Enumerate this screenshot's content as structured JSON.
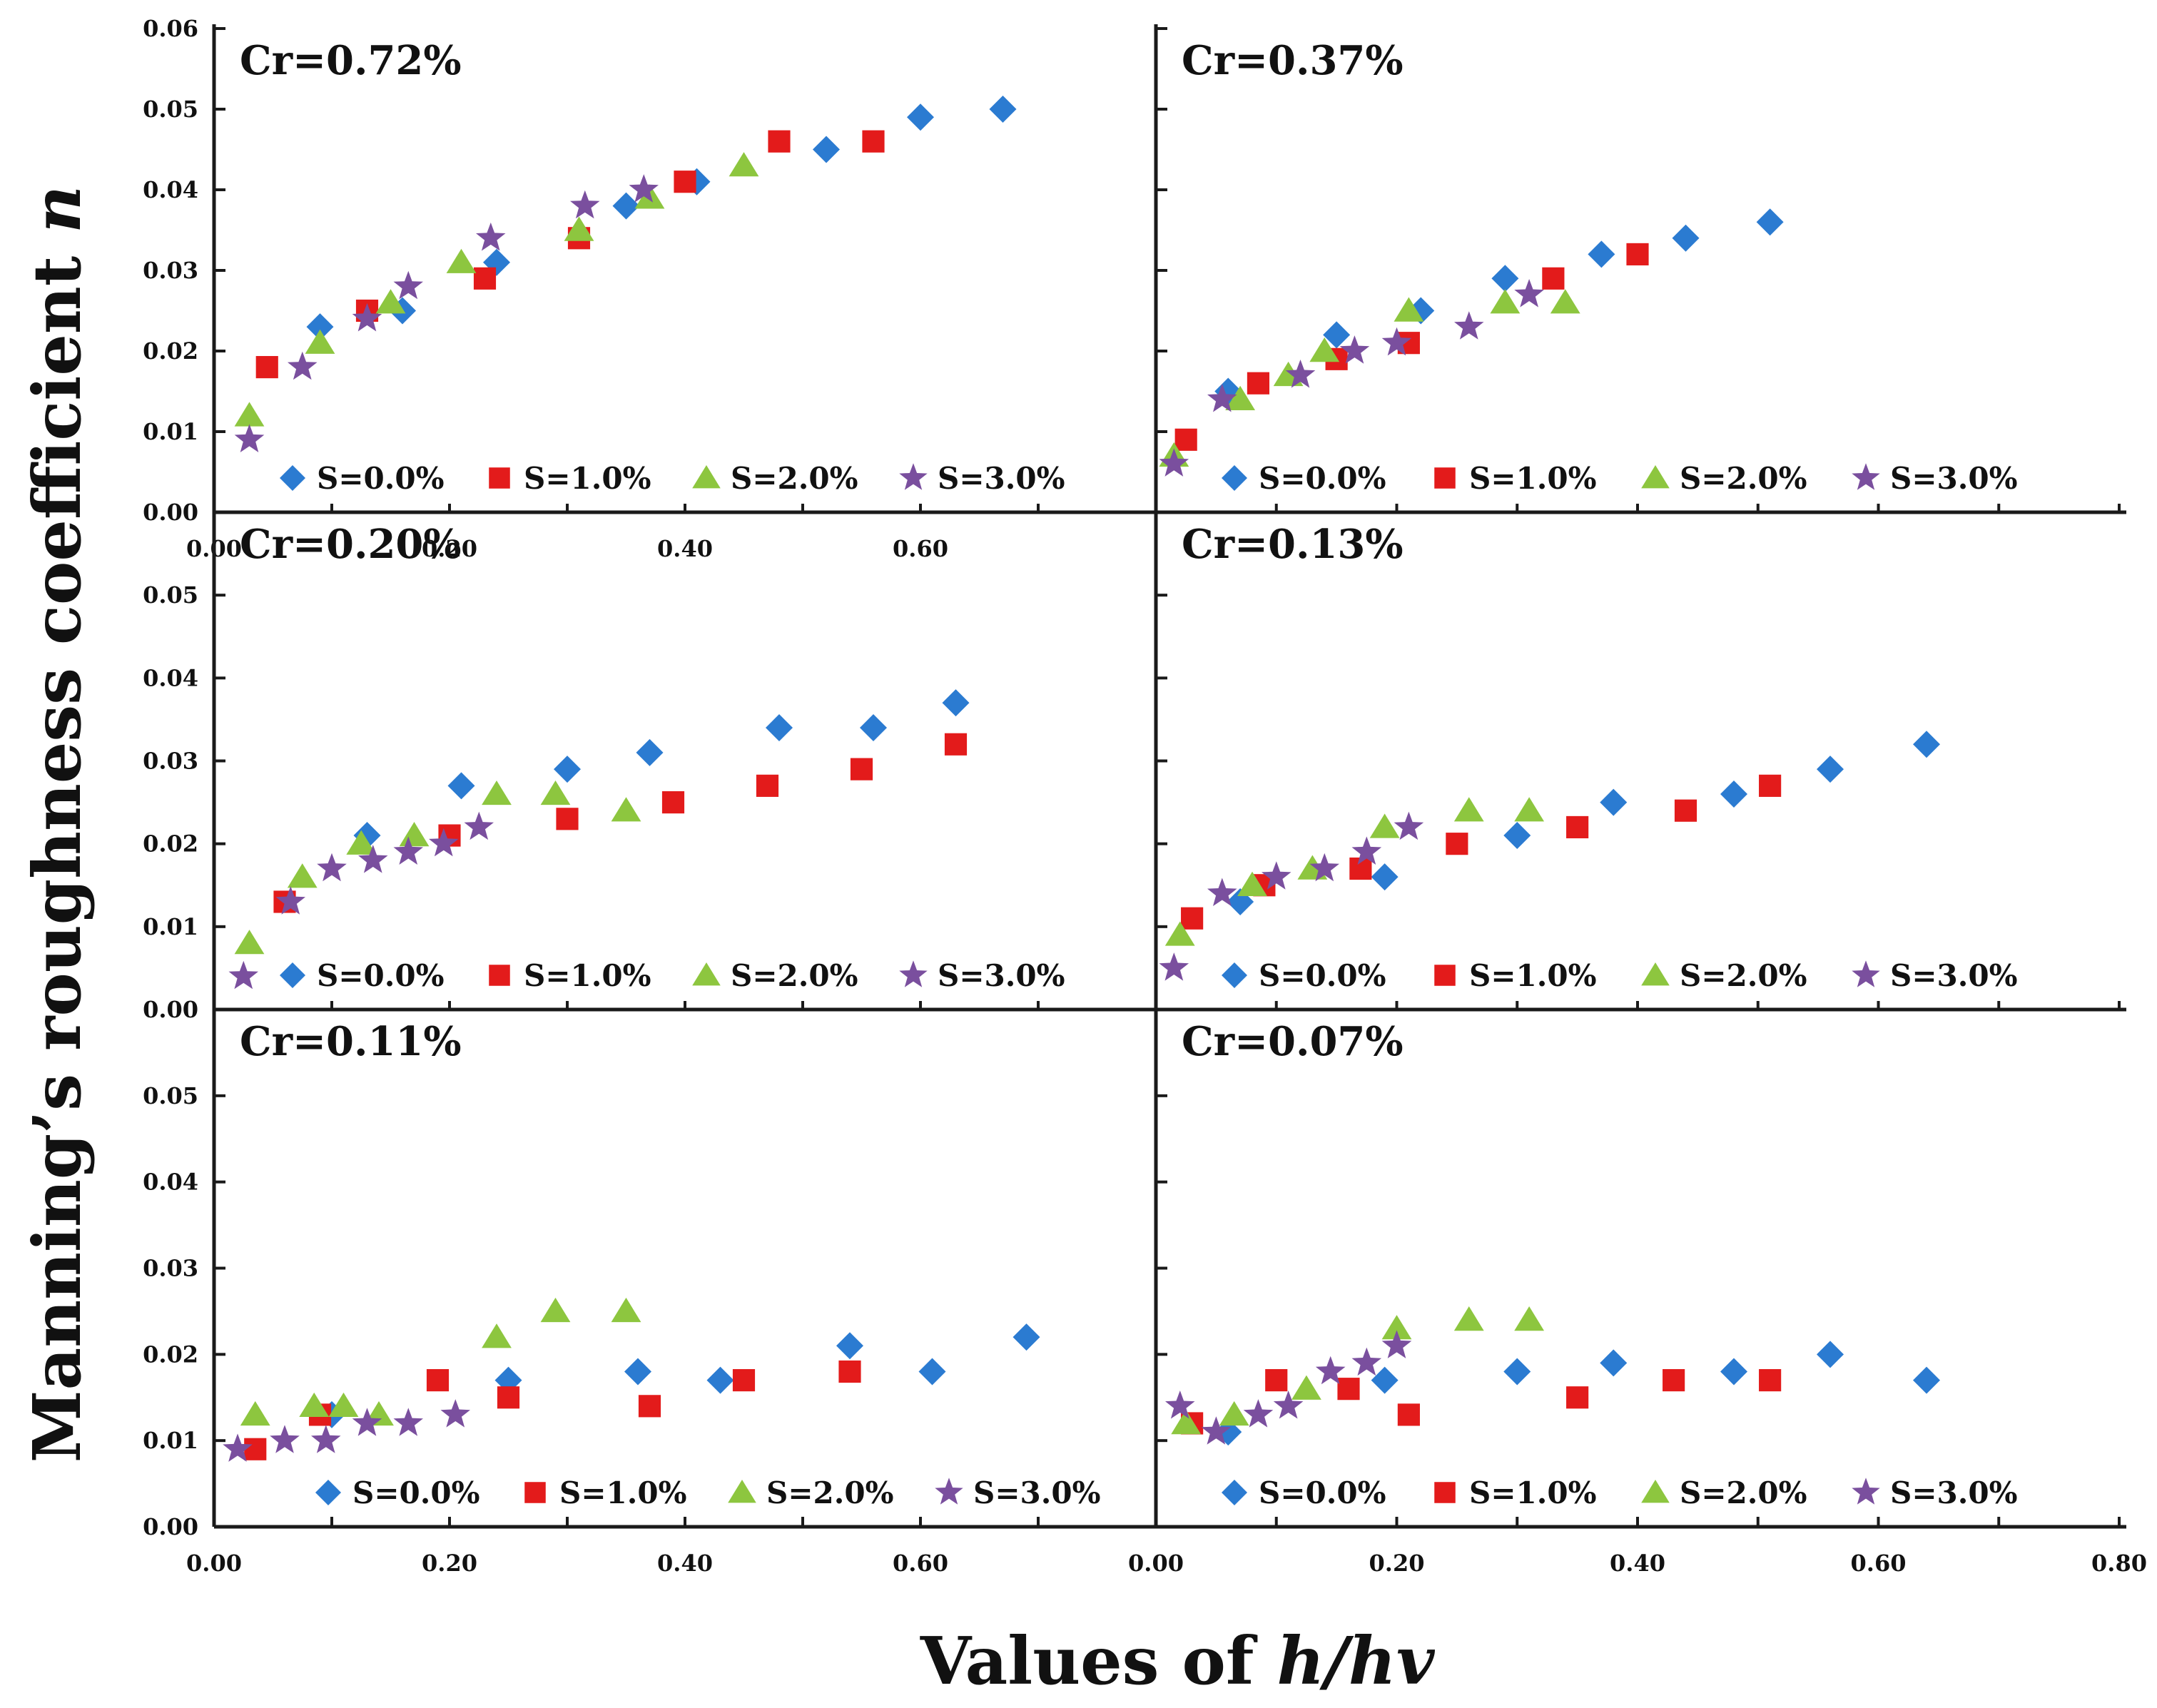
{
  "figure": {
    "ylabel": "Manning’s roughness coefficient",
    "ylabel_var": "n",
    "xlabel": "Values of",
    "xlabel_var": "h/hv"
  },
  "series_styles": [
    {
      "name": "S=0.0%",
      "marker": "diamond",
      "color": "#2b7bd1"
    },
    {
      "name": "S=1.0%",
      "marker": "square",
      "color": "#e31b1b"
    },
    {
      "name": "S=2.0%",
      "marker": "triangle",
      "color": "#8dc63f"
    },
    {
      "name": "S=3.0%",
      "marker": "star",
      "color": "#7a4f9e"
    }
  ],
  "chart_data": [
    {
      "type": "scatter",
      "panel": "Cr=0.72%",
      "title": "Cr=0.72%",
      "xlim": [
        0,
        0.8
      ],
      "ylim": [
        0,
        0.06
      ],
      "yticks": [
        "0.00",
        "0.01",
        "0.02",
        "0.03",
        "0.04",
        "0.05",
        "0.06"
      ],
      "xticks": [
        "0.00",
        "0.20",
        "0.40",
        "0.60"
      ],
      "series": [
        {
          "name": "S=0.0%",
          "x": [
            0.09,
            0.16,
            0.24,
            0.35,
            0.41,
            0.52,
            0.6,
            0.67
          ],
          "y": [
            0.023,
            0.025,
            0.031,
            0.038,
            0.041,
            0.045,
            0.049,
            0.05
          ]
        },
        {
          "name": "S=1.0%",
          "x": [
            0.045,
            0.13,
            0.23,
            0.31,
            0.4,
            0.48,
            0.56
          ],
          "y": [
            0.018,
            0.025,
            0.029,
            0.034,
            0.041,
            0.046,
            0.046
          ]
        },
        {
          "name": "S=2.0%",
          "x": [
            0.03,
            0.09,
            0.15,
            0.21,
            0.31,
            0.37,
            0.45
          ],
          "y": [
            0.012,
            0.021,
            0.026,
            0.031,
            0.035,
            0.039,
            0.043
          ]
        },
        {
          "name": "S=3.0%",
          "x": [
            0.03,
            0.075,
            0.13,
            0.165,
            0.235,
            0.315,
            0.365
          ],
          "y": [
            0.009,
            0.018,
            0.024,
            0.028,
            0.034,
            0.038,
            0.04
          ]
        }
      ]
    },
    {
      "type": "scatter",
      "panel": "Cr=0.37%",
      "title": "Cr=0.37%",
      "xlim": [
        0,
        0.8
      ],
      "ylim": [
        0,
        0.06
      ],
      "xticks": [],
      "series": [
        {
          "name": "S=0.0%",
          "x": [
            0.06,
            0.15,
            0.22,
            0.29,
            0.37,
            0.44,
            0.51
          ],
          "y": [
            0.015,
            0.022,
            0.025,
            0.029,
            0.032,
            0.034,
            0.036
          ]
        },
        {
          "name": "S=1.0%",
          "x": [
            0.025,
            0.085,
            0.15,
            0.21,
            0.33,
            0.4
          ],
          "y": [
            0.009,
            0.016,
            0.019,
            0.021,
            0.029,
            0.032
          ]
        },
        {
          "name": "S=2.0%",
          "x": [
            0.015,
            0.07,
            0.11,
            0.14,
            0.21,
            0.29,
            0.34
          ],
          "y": [
            0.007,
            0.014,
            0.017,
            0.02,
            0.025,
            0.026,
            0.026
          ]
        },
        {
          "name": "S=3.0%",
          "x": [
            0.015,
            0.055,
            0.12,
            0.165,
            0.2,
            0.26,
            0.31
          ],
          "y": [
            0.006,
            0.014,
            0.017,
            0.02,
            0.021,
            0.023,
            0.027
          ]
        }
      ]
    },
    {
      "type": "scatter",
      "panel": "Cr=0.20%",
      "title": "Cr=0.20%",
      "xlim": [
        0,
        0.8
      ],
      "ylim": [
        0,
        0.06
      ],
      "yticks": [
        "0.00",
        "0.01",
        "0.02",
        "0.03",
        "0.04",
        "0.05"
      ],
      "xticks": [],
      "series": [
        {
          "name": "S=0.0%",
          "x": [
            0.13,
            0.21,
            0.3,
            0.37,
            0.48,
            0.56,
            0.63
          ],
          "y": [
            0.021,
            0.027,
            0.029,
            0.031,
            0.034,
            0.034,
            0.037
          ]
        },
        {
          "name": "S=1.0%",
          "x": [
            0.06,
            0.2,
            0.3,
            0.39,
            0.47,
            0.55,
            0.63
          ],
          "y": [
            0.013,
            0.021,
            0.023,
            0.025,
            0.027,
            0.029,
            0.032
          ]
        },
        {
          "name": "S=2.0%",
          "x": [
            0.03,
            0.075,
            0.125,
            0.17,
            0.24,
            0.29,
            0.35
          ],
          "y": [
            0.008,
            0.016,
            0.02,
            0.021,
            0.026,
            0.026,
            0.024
          ]
        },
        {
          "name": "S=3.0%",
          "x": [
            0.025,
            0.065,
            0.1,
            0.135,
            0.165,
            0.195,
            0.225
          ],
          "y": [
            0.004,
            0.013,
            0.017,
            0.018,
            0.019,
            0.02,
            0.022
          ]
        }
      ]
    },
    {
      "type": "scatter",
      "panel": "Cr=0.13%",
      "title": "Cr=0.13%",
      "xlim": [
        0,
        0.8
      ],
      "ylim": [
        0,
        0.06
      ],
      "xticks": [],
      "series": [
        {
          "name": "S=0.0%",
          "x": [
            0.07,
            0.19,
            0.3,
            0.38,
            0.48,
            0.56,
            0.64
          ],
          "y": [
            0.013,
            0.016,
            0.021,
            0.025,
            0.026,
            0.029,
            0.032
          ]
        },
        {
          "name": "S=1.0%",
          "x": [
            0.03,
            0.09,
            0.17,
            0.25,
            0.35,
            0.44,
            0.51
          ],
          "y": [
            0.011,
            0.015,
            0.017,
            0.02,
            0.022,
            0.024,
            0.027
          ]
        },
        {
          "name": "S=2.0%",
          "x": [
            0.02,
            0.08,
            0.13,
            0.19,
            0.26,
            0.31
          ],
          "y": [
            0.009,
            0.015,
            0.017,
            0.022,
            0.024,
            0.024
          ]
        },
        {
          "name": "S=3.0%",
          "x": [
            0.015,
            0.055,
            0.1,
            0.14,
            0.175,
            0.21
          ],
          "y": [
            0.005,
            0.014,
            0.016,
            0.017,
            0.019,
            0.022
          ]
        }
      ]
    },
    {
      "type": "scatter",
      "panel": "Cr=0.11%",
      "title": "Cr=0.11%",
      "xlim": [
        0,
        0.8
      ],
      "ylim": [
        0,
        0.06
      ],
      "yticks": [
        "0.00",
        "0.01",
        "0.02",
        "0.03",
        "0.04",
        "0.05"
      ],
      "xticks": [
        "0.00",
        "0.20",
        "0.40",
        "0.60"
      ],
      "series": [
        {
          "name": "S=0.0%",
          "x": [
            0.1,
            0.25,
            0.36,
            0.43,
            0.54,
            0.61,
            0.69
          ],
          "y": [
            0.013,
            0.017,
            0.018,
            0.017,
            0.021,
            0.018,
            0.022
          ]
        },
        {
          "name": "S=1.0%",
          "x": [
            0.035,
            0.09,
            0.19,
            0.25,
            0.37,
            0.45,
            0.54
          ],
          "y": [
            0.009,
            0.013,
            0.017,
            0.015,
            0.014,
            0.017,
            0.018
          ]
        },
        {
          "name": "S=2.0%",
          "x": [
            0.035,
            0.085,
            0.11,
            0.14,
            0.24,
            0.29,
            0.35
          ],
          "y": [
            0.013,
            0.014,
            0.014,
            0.013,
            0.022,
            0.025,
            0.025
          ]
        },
        {
          "name": "S=3.0%",
          "x": [
            0.02,
            0.06,
            0.095,
            0.13,
            0.165,
            0.205
          ],
          "y": [
            0.009,
            0.01,
            0.01,
            0.012,
            0.012,
            0.013
          ]
        }
      ]
    },
    {
      "type": "scatter",
      "panel": "Cr=0.07%",
      "title": "Cr=0.07%",
      "xlim": [
        0,
        0.8
      ],
      "ylim": [
        0,
        0.06
      ],
      "xticks": [
        "0.00",
        "0.20",
        "0.40",
        "0.60",
        "0.80"
      ],
      "series": [
        {
          "name": "S=0.0%",
          "x": [
            0.06,
            0.19,
            0.3,
            0.38,
            0.48,
            0.56,
            0.64
          ],
          "y": [
            0.011,
            0.017,
            0.018,
            0.019,
            0.018,
            0.02,
            0.017
          ]
        },
        {
          "name": "S=1.0%",
          "x": [
            0.03,
            0.1,
            0.16,
            0.21,
            0.35,
            0.43,
            0.51
          ],
          "y": [
            0.012,
            0.017,
            0.016,
            0.013,
            0.015,
            0.017,
            0.017
          ]
        },
        {
          "name": "S=2.0%",
          "x": [
            0.025,
            0.065,
            0.125,
            0.2,
            0.26,
            0.31
          ],
          "y": [
            0.012,
            0.013,
            0.016,
            0.023,
            0.024,
            0.024
          ]
        },
        {
          "name": "S=3.0%",
          "x": [
            0.02,
            0.05,
            0.085,
            0.11,
            0.145,
            0.175,
            0.2
          ],
          "y": [
            0.014,
            0.011,
            0.013,
            0.014,
            0.018,
            0.019,
            0.021
          ]
        }
      ]
    }
  ]
}
